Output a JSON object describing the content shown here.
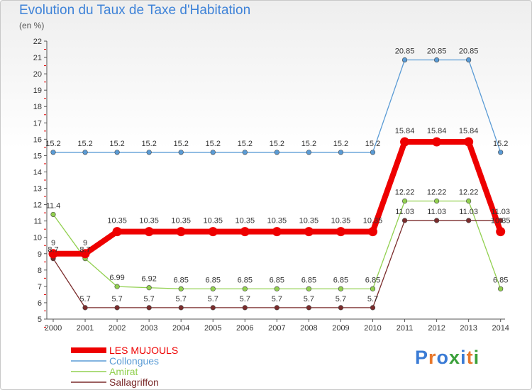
{
  "title": "Evolution du Taux de Taxe d'Habitation",
  "subtitle": "(en %)",
  "logo": {
    "text": "Proxiti",
    "colors": [
      "#3a7bd5",
      "#e8782c",
      "#3a7bd5",
      "#3aa03a",
      "#3a7bd5",
      "#e8782c",
      "#3aa03a"
    ]
  },
  "chart_data": {
    "type": "line",
    "x": [
      "2000",
      "2001",
      "2002",
      "2003",
      "2004",
      "2005",
      "2006",
      "2007",
      "2008",
      "2009",
      "2010",
      "2011",
      "2012",
      "2013",
      "2014"
    ],
    "ylim": [
      5,
      22
    ],
    "yticks": [
      5,
      6,
      7,
      8,
      9,
      10,
      11,
      12,
      13,
      14,
      15,
      16,
      17,
      18,
      19,
      20,
      21,
      22
    ],
    "grid": false,
    "legend_position": "bottom-left",
    "series": [
      {
        "name": "Collongues",
        "color": "#5a9bd5",
        "values": [
          15.2,
          15.2,
          15.2,
          15.2,
          15.2,
          15.2,
          15.2,
          15.2,
          15.2,
          15.2,
          15.2,
          20.85,
          20.85,
          20.85,
          15.2
        ],
        "labels": [
          "15.2",
          "15.2",
          "15.2",
          "15.2",
          "15.2",
          "15.2",
          "15.2",
          "15.2",
          "15.2",
          "15.2",
          "15.2",
          "20.85",
          "20.85",
          "20.85",
          "15.2"
        ]
      },
      {
        "name": "Amirat",
        "color": "#92d050",
        "values": [
          11.4,
          8.7,
          6.99,
          6.92,
          6.85,
          6.85,
          6.85,
          6.85,
          6.85,
          6.85,
          6.85,
          12.22,
          12.22,
          12.22,
          6.85
        ],
        "labels": [
          "11.4",
          "8.7",
          "6.99",
          "6.92",
          "6.85",
          "6.85",
          "6.85",
          "6.85",
          "6.85",
          "6.85",
          "6.85",
          "12.22",
          "12.22",
          "12.22",
          "6.85"
        ]
      },
      {
        "name": "Sallagriffon",
        "color": "#7b2c2c",
        "values": [
          8.7,
          5.7,
          5.7,
          5.7,
          5.7,
          5.7,
          5.7,
          5.7,
          5.7,
          5.7,
          5.7,
          11.03,
          11.03,
          11.03,
          11.03
        ],
        "labels": [
          "8.7",
          "5.7",
          "5.7",
          "5.7",
          "5.7",
          "5.7",
          "5.7",
          "5.7",
          "5.7",
          "5.7",
          "5.7",
          "11.03",
          "11.03",
          "11.03",
          "11.03"
        ]
      },
      {
        "name": "LES MUJOULS",
        "color": "#ee0000",
        "values": [
          9,
          9,
          10.35,
          10.35,
          10.35,
          10.35,
          10.35,
          10.35,
          10.35,
          10.35,
          10.35,
          15.84,
          15.84,
          15.84,
          10.35
        ],
        "labels": [
          "9",
          "9",
          "10.35",
          "10.35",
          "10.35",
          "10.35",
          "10.35",
          "10.35",
          "10.35",
          "10.35",
          "10.35",
          "15.84",
          "15.84",
          "15.84",
          "10.35"
        ]
      }
    ],
    "legend": [
      {
        "name": "LES MUJOULS",
        "color": "#ee0000"
      },
      {
        "name": "Collongues",
        "color": "#5a9bd5"
      },
      {
        "name": "Amirat",
        "color": "#92d050"
      },
      {
        "name": "Sallagriffon",
        "color": "#7b2c2c"
      }
    ]
  }
}
